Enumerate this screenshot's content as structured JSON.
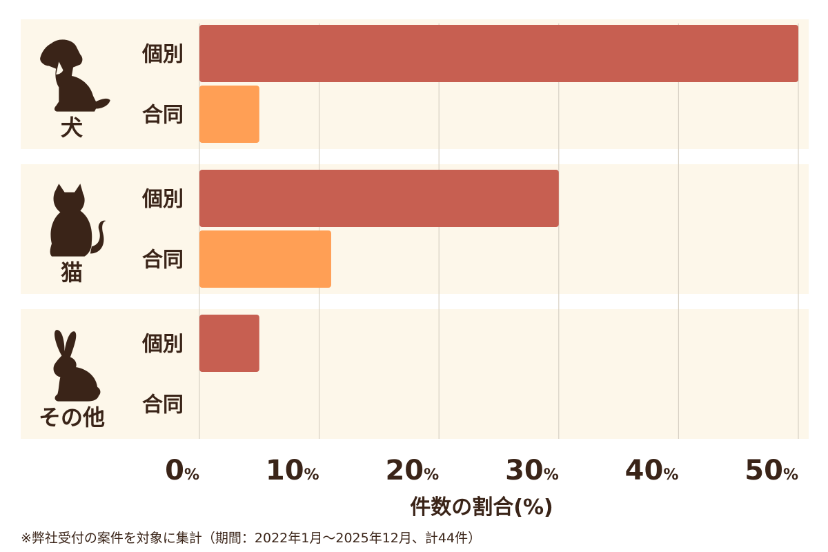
{
  "colors": {
    "panel_bg": "#fdf7ea",
    "grid": "#d7d0c4",
    "individual": "#c75f51",
    "joint": "#ff9f55",
    "text": "#3a2418"
  },
  "chart_data": {
    "type": "bar",
    "orientation": "horizontal",
    "groups": [
      {
        "label": "犬",
        "icon": "dog-icon"
      },
      {
        "label": "猫",
        "icon": "cat-icon"
      },
      {
        "label": "その他",
        "icon": "rabbit-icon"
      }
    ],
    "series": [
      {
        "name": "個別",
        "values": [
          50,
          30,
          5
        ]
      },
      {
        "name": "合同",
        "values": [
          5,
          11,
          0
        ]
      }
    ],
    "xlim": [
      0,
      50
    ],
    "x_ticks": [
      0,
      10,
      20,
      30,
      40,
      50
    ],
    "tick_unit": "%",
    "xlabel": "件数の割合(%)",
    "grid": true,
    "legend": "none"
  },
  "footnote": "※弊社受付の案件を対象に集計（期間：2022年1月～2025年12月、計44件）"
}
